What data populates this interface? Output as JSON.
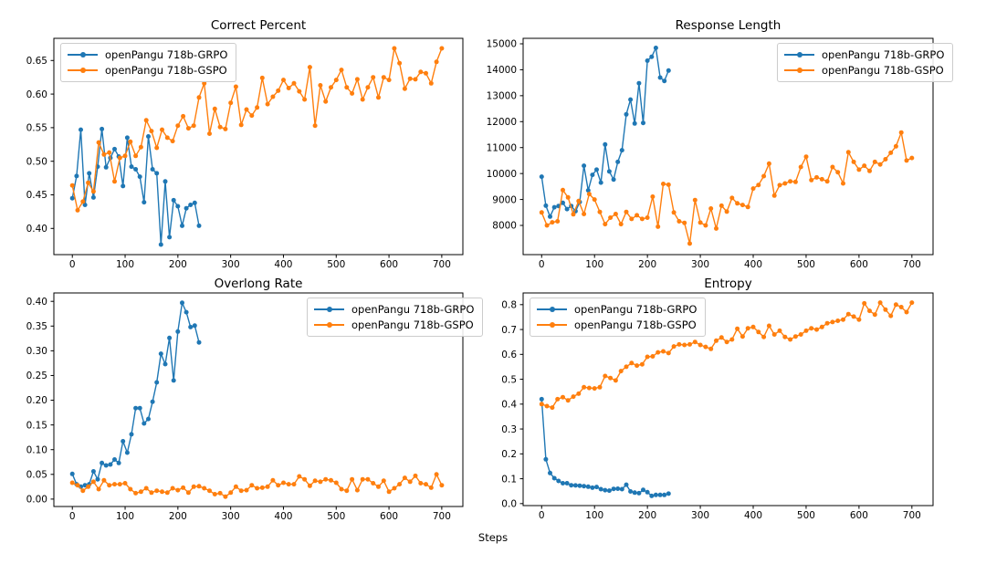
{
  "figure": {
    "xlabel": "Steps",
    "background_color": "#ffffff",
    "text_color": "#000000",
    "series_colors": {
      "grpo": "#1f77b4",
      "gspo": "#ff7f0e"
    },
    "legend_labels": [
      "openPangu 718b-GRPO",
      "openPangu 718b-GSPO"
    ]
  },
  "chart_data": [
    {
      "type": "line",
      "title": "Correct Percent",
      "grid": false,
      "legend_position": "upper left",
      "xlim": [
        -35,
        740
      ],
      "ylim": [
        0.361,
        0.683
      ],
      "xticks": [
        0,
        100,
        200,
        300,
        400,
        500,
        600,
        700
      ],
      "yticks": [
        0.4,
        0.45,
        0.5,
        0.55,
        0.6,
        0.65
      ],
      "ytick_decimals": 2,
      "series": [
        {
          "name": "openPangu 718b-GRPO",
          "color": "#1f77b4",
          "x": [
            0,
            8,
            16,
            24,
            32,
            40,
            48,
            56,
            64,
            72,
            80,
            88,
            96,
            104,
            112,
            120,
            128,
            136,
            144,
            152,
            160,
            168,
            176,
            184,
            192,
            200,
            208,
            216,
            224,
            232,
            240
          ],
          "y": [
            0.445,
            0.478,
            0.547,
            0.435,
            0.482,
            0.446,
            0.492,
            0.548,
            0.491,
            0.505,
            0.518,
            0.507,
            0.463,
            0.535,
            0.492,
            0.488,
            0.477,
            0.439,
            0.537,
            0.488,
            0.482,
            0.376,
            0.47,
            0.387,
            0.442,
            0.433,
            0.404,
            0.43,
            0.435,
            0.438,
            0.404
          ]
        },
        {
          "name": "openPangu 718b-GSPO",
          "color": "#ff7f0e",
          "x": [
            0,
            10,
            20,
            30,
            40,
            50,
            60,
            70,
            80,
            90,
            100,
            110,
            120,
            130,
            140,
            150,
            160,
            170,
            180,
            190,
            200,
            210,
            220,
            230,
            240,
            250,
            260,
            270,
            280,
            290,
            300,
            310,
            320,
            330,
            340,
            350,
            360,
            370,
            380,
            390,
            400,
            410,
            420,
            430,
            440,
            450,
            460,
            470,
            480,
            490,
            500,
            510,
            520,
            530,
            540,
            550,
            560,
            570,
            580,
            590,
            600,
            610,
            620,
            630,
            640,
            650,
            660,
            670,
            680,
            690,
            700
          ],
          "y": [
            0.464,
            0.427,
            0.44,
            0.468,
            0.455,
            0.528,
            0.51,
            0.513,
            0.47,
            0.505,
            0.508,
            0.529,
            0.508,
            0.521,
            0.561,
            0.545,
            0.52,
            0.547,
            0.535,
            0.53,
            0.553,
            0.567,
            0.549,
            0.553,
            0.595,
            0.616,
            0.541,
            0.578,
            0.551,
            0.548,
            0.587,
            0.611,
            0.554,
            0.577,
            0.568,
            0.58,
            0.624,
            0.585,
            0.596,
            0.605,
            0.621,
            0.609,
            0.616,
            0.604,
            0.592,
            0.64,
            0.553,
            0.613,
            0.589,
            0.61,
            0.621,
            0.636,
            0.61,
            0.601,
            0.622,
            0.592,
            0.61,
            0.625,
            0.595,
            0.625,
            0.621,
            0.668,
            0.646,
            0.608,
            0.623,
            0.622,
            0.633,
            0.631,
            0.616,
            0.648,
            0.668
          ]
        }
      ]
    },
    {
      "type": "line",
      "title": "Response Length",
      "grid": false,
      "legend_position": "upper right",
      "xlim": [
        -35,
        740
      ],
      "ylim": [
        6875,
        15211
      ],
      "xticks": [
        0,
        100,
        200,
        300,
        400,
        500,
        600,
        700
      ],
      "yticks": [
        8000,
        9000,
        10000,
        11000,
        12000,
        13000,
        14000,
        15000
      ],
      "ytick_decimals": 0,
      "series": [
        {
          "name": "openPangu 718b-GRPO",
          "color": "#1f77b4",
          "x": [
            0,
            8,
            16,
            24,
            32,
            40,
            48,
            56,
            64,
            72,
            80,
            88,
            96,
            104,
            112,
            120,
            128,
            136,
            144,
            152,
            160,
            168,
            176,
            184,
            192,
            200,
            208,
            216,
            224,
            232,
            240
          ],
          "y": [
            9880,
            8760,
            8340,
            8700,
            8750,
            8870,
            8630,
            8750,
            8550,
            8900,
            10300,
            9350,
            9950,
            10150,
            9650,
            11120,
            10080,
            9770,
            10450,
            10900,
            12280,
            12850,
            11930,
            13480,
            11950,
            14350,
            14500,
            14840,
            13700,
            13570,
            13970
          ]
        },
        {
          "name": "openPangu 718b-GSPO",
          "color": "#ff7f0e",
          "x": [
            0,
            10,
            20,
            30,
            40,
            50,
            60,
            70,
            80,
            90,
            100,
            110,
            120,
            130,
            140,
            150,
            160,
            170,
            180,
            190,
            200,
            210,
            220,
            230,
            240,
            250,
            260,
            270,
            280,
            290,
            300,
            310,
            320,
            330,
            340,
            350,
            360,
            370,
            380,
            390,
            400,
            410,
            420,
            430,
            440,
            450,
            460,
            470,
            480,
            490,
            500,
            510,
            520,
            530,
            540,
            550,
            560,
            570,
            580,
            590,
            600,
            610,
            620,
            630,
            640,
            650,
            660,
            670,
            680,
            690,
            700
          ],
          "y": [
            8500,
            8000,
            8120,
            8160,
            9360,
            9080,
            8430,
            8940,
            8440,
            9210,
            9000,
            8520,
            8050,
            8300,
            8440,
            8050,
            8520,
            8250,
            8390,
            8250,
            8300,
            9110,
            7950,
            9600,
            9570,
            8500,
            8160,
            8100,
            7300,
            8980,
            8110,
            8000,
            8650,
            7880,
            8760,
            8530,
            9060,
            8850,
            8790,
            8710,
            9420,
            9560,
            9900,
            10380,
            9150,
            9550,
            9620,
            9700,
            9680,
            10250,
            10650,
            9750,
            9850,
            9780,
            9700,
            10250,
            10050,
            9620,
            10820,
            10450,
            10150,
            10300,
            10100,
            10450,
            10350,
            10550,
            10800,
            11050,
            11580,
            10500,
            10600
          ]
        }
      ]
    },
    {
      "type": "line",
      "title": "Overlong Rate",
      "grid": false,
      "legend_position": "upper right",
      "xlim": [
        -35,
        740
      ],
      "ylim": [
        -0.015,
        0.417
      ],
      "xticks": [
        0,
        100,
        200,
        300,
        400,
        500,
        600,
        700
      ],
      "yticks": [
        0.0,
        0.05,
        0.1,
        0.15,
        0.2,
        0.25,
        0.3,
        0.35,
        0.4
      ],
      "ytick_decimals": 2,
      "series": [
        {
          "name": "openPangu 718b-GRPO",
          "color": "#1f77b4",
          "x": [
            0,
            8,
            16,
            24,
            32,
            40,
            48,
            56,
            64,
            72,
            80,
            88,
            96,
            104,
            112,
            120,
            128,
            136,
            144,
            152,
            160,
            168,
            176,
            184,
            192,
            200,
            208,
            216,
            224,
            232,
            240
          ],
          "y": [
            0.051,
            0.03,
            0.025,
            0.028,
            0.03,
            0.056,
            0.04,
            0.073,
            0.068,
            0.07,
            0.08,
            0.073,
            0.117,
            0.094,
            0.131,
            0.184,
            0.184,
            0.153,
            0.162,
            0.197,
            0.236,
            0.294,
            0.273,
            0.326,
            0.24,
            0.339,
            0.397,
            0.378,
            0.348,
            0.351,
            0.317
          ]
        },
        {
          "name": "openPangu 718b-GSPO",
          "color": "#ff7f0e",
          "x": [
            0,
            10,
            20,
            30,
            40,
            50,
            60,
            70,
            80,
            90,
            100,
            110,
            120,
            130,
            140,
            150,
            160,
            170,
            180,
            190,
            200,
            210,
            220,
            230,
            240,
            250,
            260,
            270,
            280,
            290,
            300,
            310,
            320,
            330,
            340,
            350,
            360,
            370,
            380,
            390,
            400,
            410,
            420,
            430,
            440,
            450,
            460,
            470,
            480,
            490,
            500,
            510,
            520,
            530,
            540,
            550,
            560,
            570,
            580,
            590,
            600,
            610,
            620,
            630,
            640,
            650,
            660,
            670,
            680,
            690,
            700
          ],
          "y": [
            0.033,
            0.028,
            0.017,
            0.025,
            0.035,
            0.02,
            0.038,
            0.028,
            0.03,
            0.03,
            0.032,
            0.02,
            0.012,
            0.015,
            0.022,
            0.013,
            0.017,
            0.015,
            0.013,
            0.022,
            0.018,
            0.023,
            0.013,
            0.025,
            0.026,
            0.022,
            0.017,
            0.01,
            0.012,
            0.005,
            0.013,
            0.025,
            0.017,
            0.018,
            0.028,
            0.022,
            0.023,
            0.025,
            0.038,
            0.028,
            0.033,
            0.03,
            0.03,
            0.046,
            0.04,
            0.027,
            0.037,
            0.035,
            0.04,
            0.038,
            0.033,
            0.02,
            0.017,
            0.04,
            0.018,
            0.04,
            0.04,
            0.032,
            0.025,
            0.037,
            0.015,
            0.022,
            0.03,
            0.043,
            0.035,
            0.047,
            0.032,
            0.03,
            0.023,
            0.05,
            0.028
          ]
        }
      ]
    },
    {
      "type": "line",
      "title": "Entropy",
      "grid": false,
      "legend_position": "upper left",
      "xlim": [
        -35,
        740
      ],
      "ylim": [
        -0.008,
        0.847
      ],
      "xticks": [
        0,
        100,
        200,
        300,
        400,
        500,
        600,
        700
      ],
      "yticks": [
        0.0,
        0.1,
        0.2,
        0.3,
        0.4,
        0.5,
        0.6,
        0.7,
        0.8
      ],
      "ytick_decimals": 1,
      "series": [
        {
          "name": "openPangu 718b-GRPO",
          "color": "#1f77b4",
          "x": [
            0,
            8,
            16,
            24,
            32,
            40,
            48,
            56,
            64,
            72,
            80,
            88,
            96,
            104,
            112,
            120,
            128,
            136,
            144,
            152,
            160,
            168,
            176,
            184,
            192,
            200,
            208,
            216,
            224,
            232,
            240
          ],
          "y": [
            0.42,
            0.178,
            0.123,
            0.102,
            0.091,
            0.082,
            0.082,
            0.074,
            0.073,
            0.072,
            0.07,
            0.068,
            0.064,
            0.067,
            0.058,
            0.054,
            0.052,
            0.059,
            0.06,
            0.058,
            0.076,
            0.049,
            0.044,
            0.042,
            0.055,
            0.046,
            0.031,
            0.035,
            0.035,
            0.035,
            0.04
          ]
        },
        {
          "name": "openPangu 718b-GSPO",
          "color": "#ff7f0e",
          "x": [
            0,
            10,
            20,
            30,
            40,
            50,
            60,
            70,
            80,
            90,
            100,
            110,
            120,
            130,
            140,
            150,
            160,
            170,
            180,
            190,
            200,
            210,
            220,
            230,
            240,
            250,
            260,
            270,
            280,
            290,
            300,
            310,
            320,
            330,
            340,
            350,
            360,
            370,
            380,
            390,
            400,
            410,
            420,
            430,
            440,
            450,
            460,
            470,
            480,
            490,
            500,
            510,
            520,
            530,
            540,
            550,
            560,
            570,
            580,
            590,
            600,
            610,
            620,
            630,
            640,
            650,
            660,
            670,
            680,
            690,
            700
          ],
          "y": [
            0.4,
            0.392,
            0.386,
            0.42,
            0.428,
            0.415,
            0.43,
            0.442,
            0.468,
            0.465,
            0.463,
            0.468,
            0.513,
            0.505,
            0.495,
            0.533,
            0.55,
            0.565,
            0.555,
            0.56,
            0.59,
            0.592,
            0.608,
            0.612,
            0.605,
            0.632,
            0.64,
            0.638,
            0.64,
            0.65,
            0.638,
            0.63,
            0.622,
            0.655,
            0.668,
            0.65,
            0.66,
            0.703,
            0.672,
            0.705,
            0.71,
            0.69,
            0.67,
            0.715,
            0.68,
            0.695,
            0.67,
            0.66,
            0.672,
            0.68,
            0.695,
            0.705,
            0.7,
            0.71,
            0.725,
            0.73,
            0.735,
            0.74,
            0.762,
            0.752,
            0.74,
            0.805,
            0.775,
            0.76,
            0.808,
            0.78,
            0.755,
            0.8,
            0.79,
            0.77,
            0.808
          ]
        }
      ]
    }
  ]
}
